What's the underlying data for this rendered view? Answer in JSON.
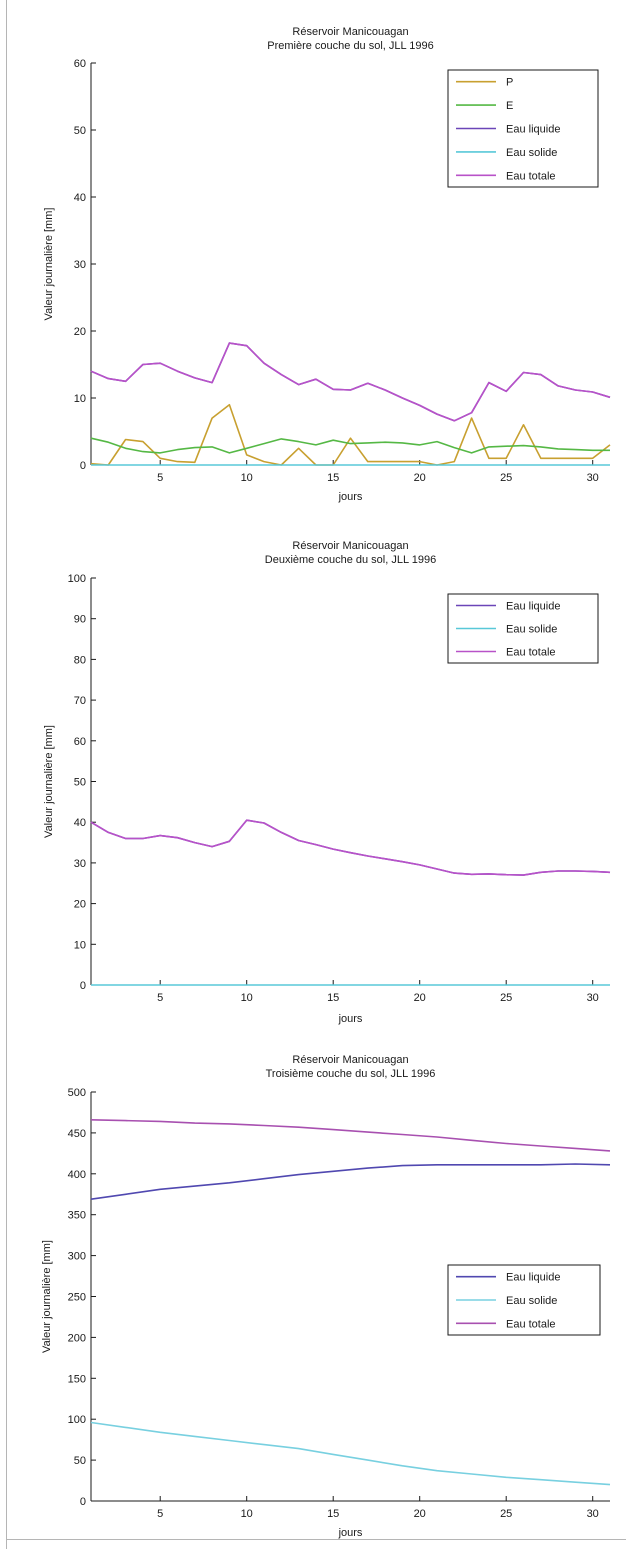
{
  "chart_data": [
    {
      "type": "line",
      "title": "Réservoir Manicouagan",
      "subtitle": "Première couche du sol, JLL 1996",
      "xlabel": "jours",
      "ylabel": "Valeur journalière [mm]",
      "xlim": [
        1,
        31
      ],
      "ylim": [
        0,
        60
      ],
      "xticks": [
        5,
        10,
        15,
        20,
        25,
        30
      ],
      "yticks": [
        0,
        10,
        20,
        30,
        40,
        50,
        60
      ],
      "legend_position": "top-right",
      "x": [
        1,
        2,
        3,
        4,
        5,
        6,
        7,
        8,
        9,
        10,
        11,
        12,
        13,
        14,
        15,
        16,
        17,
        18,
        19,
        20,
        21,
        22,
        23,
        24,
        25,
        26,
        27,
        28,
        29,
        30,
        31
      ],
      "series": [
        {
          "name": "P",
          "color": "#c8a030",
          "values": [
            0.2,
            0,
            3.8,
            3.5,
            1,
            0.5,
            0.4,
            7,
            9,
            1.5,
            0.5,
            0,
            2.5,
            0,
            0,
            4,
            0.5,
            0.5,
            0.5,
            0.5,
            0,
            0.5,
            7,
            1,
            1,
            6,
            1,
            1,
            1,
            1,
            3
          ]
        },
        {
          "name": "E",
          "color": "#55b845",
          "values": [
            4,
            3.4,
            2.5,
            2,
            1.8,
            2.3,
            2.6,
            2.7,
            1.8,
            2.5,
            3.2,
            3.9,
            3.5,
            3,
            3.7,
            3.2,
            3.3,
            3.4,
            3.3,
            3,
            3.5,
            2.6,
            1.8,
            2.7,
            2.8,
            2.9,
            2.7,
            2.4,
            2.3,
            2.2,
            2.2
          ]
        },
        {
          "name": "Eau liquide",
          "color": "#6b46b8",
          "values": [
            14,
            12.9,
            12.5,
            15,
            15.2,
            14,
            13,
            12.3,
            18.2,
            17.8,
            15.2,
            13.5,
            12,
            12.8,
            11.3,
            11.2,
            12.2,
            11.2,
            10,
            8.9,
            7.6,
            6.6,
            7.8,
            12.3,
            11,
            13.8,
            13.5,
            11.8,
            11.2,
            10.9,
            10.1
          ]
        },
        {
          "name": "Eau solide",
          "color": "#58c8d8",
          "values": [
            0,
            0,
            0,
            0,
            0,
            0,
            0,
            0,
            0,
            0,
            0,
            0,
            0,
            0,
            0,
            0,
            0,
            0,
            0,
            0,
            0,
            0,
            0,
            0,
            0,
            0,
            0,
            0,
            0,
            0,
            0
          ]
        },
        {
          "name": "Eau totale",
          "color": "#b852c8",
          "values": [
            14,
            12.9,
            12.5,
            15,
            15.2,
            14,
            13,
            12.3,
            18.2,
            17.8,
            15.2,
            13.5,
            12,
            12.8,
            11.3,
            11.2,
            12.2,
            11.2,
            10,
            8.9,
            7.6,
            6.6,
            7.8,
            12.3,
            11,
            13.8,
            13.5,
            11.8,
            11.2,
            10.9,
            10.1
          ]
        }
      ]
    },
    {
      "type": "line",
      "title": "Réservoir Manicouagan",
      "subtitle": "Deuxième couche du sol, JLL 1996",
      "xlabel": "jours",
      "ylabel": "Valeur journalière [mm]",
      "xlim": [
        1,
        31
      ],
      "ylim": [
        0,
        100
      ],
      "xticks": [
        5,
        10,
        15,
        20,
        25,
        30
      ],
      "yticks": [
        0,
        10,
        20,
        30,
        40,
        50,
        60,
        70,
        80,
        90,
        100
      ],
      "legend_position": "top-right",
      "x": [
        1,
        2,
        3,
        4,
        5,
        6,
        7,
        8,
        9,
        10,
        11,
        12,
        13,
        14,
        15,
        16,
        17,
        18,
        19,
        20,
        21,
        22,
        23,
        24,
        25,
        26,
        27,
        28,
        29,
        30,
        31
      ],
      "series": [
        {
          "name": "Eau liquide",
          "color": "#6b46b8",
          "values": [
            40,
            37.5,
            36,
            36,
            36.7,
            36.2,
            35,
            34,
            35.3,
            40.5,
            39.8,
            37.5,
            35.5,
            34.5,
            33.4,
            32.5,
            31.7,
            31,
            30.3,
            29.5,
            28.5,
            27.5,
            27.2,
            27.3,
            27.1,
            27,
            27.7,
            28,
            28,
            27.9,
            27.7
          ]
        },
        {
          "name": "Eau solide",
          "color": "#58c8d8",
          "values": [
            0,
            0,
            0,
            0,
            0,
            0,
            0,
            0,
            0,
            0,
            0,
            0,
            0,
            0,
            0,
            0,
            0,
            0,
            0,
            0,
            0,
            0,
            0,
            0,
            0,
            0,
            0,
            0,
            0,
            0,
            0
          ]
        },
        {
          "name": "Eau totale",
          "color": "#b852c8",
          "values": [
            40,
            37.5,
            36,
            36,
            36.7,
            36.2,
            35,
            34,
            35.3,
            40.5,
            39.8,
            37.5,
            35.5,
            34.5,
            33.4,
            32.5,
            31.7,
            31,
            30.3,
            29.5,
            28.5,
            27.5,
            27.2,
            27.3,
            27.1,
            27,
            27.7,
            28,
            28,
            27.9,
            27.7
          ]
        }
      ]
    },
    {
      "type": "line",
      "title": "Réservoir Manicouagan",
      "subtitle": "Troisième couche du sol, JLL 1996",
      "xlabel": "jours",
      "ylabel": "Valeur journalière [mm]",
      "xlim": [
        1,
        31
      ],
      "ylim": [
        0,
        500
      ],
      "xticks": [
        5,
        10,
        15,
        20,
        25,
        30
      ],
      "yticks": [
        0,
        50,
        100,
        150,
        200,
        250,
        300,
        350,
        400,
        450,
        500
      ],
      "legend_position": "right",
      "x": [
        1,
        3,
        5,
        7,
        9,
        11,
        13,
        15,
        17,
        19,
        21,
        23,
        25,
        27,
        29,
        31
      ],
      "series": [
        {
          "name": "Eau liquide",
          "color": "#5048b0",
          "values": [
            369,
            375,
            381,
            385,
            389,
            394,
            399,
            403,
            407,
            410,
            411,
            411,
            411,
            411,
            412,
            411
          ]
        },
        {
          "name": "Eau solide",
          "color": "#78d0e0",
          "values": [
            96,
            90,
            84,
            79,
            74,
            69,
            64,
            57,
            50,
            43,
            37,
            33,
            29,
            26,
            23,
            20
          ]
        },
        {
          "name": "Eau totale",
          "color": "#a850b0",
          "values": [
            466,
            465,
            464,
            462,
            461,
            459,
            457,
            454,
            451,
            448,
            445,
            441,
            437,
            434,
            431,
            428
          ]
        }
      ]
    }
  ]
}
